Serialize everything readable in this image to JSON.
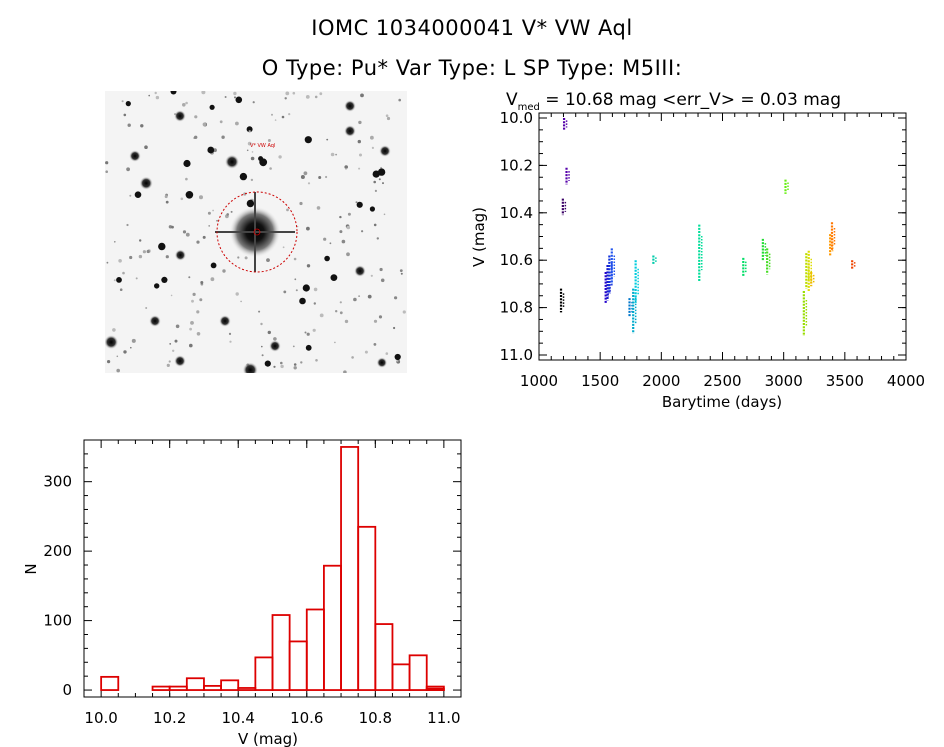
{
  "header": {
    "title_line1": "IOMC 1034000041    V* VW Aql",
    "title_line2": "O Type: Pu*  Var Type: L   SP Type: M5III:"
  },
  "finder_chart": {
    "target_label": "V* VW Aql",
    "circle_color": "#cc0000",
    "label_color": "#cc0000"
  },
  "chart_data": [
    {
      "type": "scatter",
      "title_prefix": "V",
      "title_subscript": "med",
      "title_rest": " = 10.68 mag <err_V> = 0.03 mag",
      "xlabel": "Barytime (days)",
      "ylabel": "V (mag)",
      "xlim": [
        1000,
        4000
      ],
      "ylim": [
        11.0,
        10.0
      ],
      "y_inverted": true,
      "x_ticks": [
        1000,
        1500,
        2000,
        2500,
        3000,
        3500,
        4000
      ],
      "y_ticks": [
        "10.0",
        "10.2",
        "10.4",
        "10.6",
        "10.8",
        "11.0"
      ],
      "groups": [
        {
          "x": 1180,
          "y": [
            10.72,
            10.82
          ],
          "color": "#000000"
        },
        {
          "x": 1195,
          "y": [
            10.34,
            10.41
          ],
          "color": "#3a0066"
        },
        {
          "x": 1205,
          "y": [
            10.0,
            10.05
          ],
          "color": "#5500aa"
        },
        {
          "x": 1225,
          "y": [
            10.21,
            10.28
          ],
          "color": "#5500aa"
        },
        {
          "x": 1545,
          "y": [
            10.65,
            10.78
          ],
          "color": "#2200cc"
        },
        {
          "x": 1560,
          "y": [
            10.62,
            10.77
          ],
          "color": "#1a1acc"
        },
        {
          "x": 1575,
          "y": [
            10.58,
            10.74
          ],
          "color": "#1133dd"
        },
        {
          "x": 1595,
          "y": [
            10.55,
            10.7
          ],
          "color": "#2255ee"
        },
        {
          "x": 1740,
          "y": [
            10.76,
            10.84
          ],
          "color": "#0077cc"
        },
        {
          "x": 1770,
          "y": [
            10.72,
            10.91
          ],
          "color": "#00aacc"
        },
        {
          "x": 1790,
          "y": [
            10.6,
            10.78
          ],
          "color": "#00ccdd"
        },
        {
          "x": 1935,
          "y": [
            10.58,
            10.62
          ],
          "color": "#00ccaa"
        },
        {
          "x": 2310,
          "y": [
            10.45,
            10.69
          ],
          "color": "#00dd99"
        },
        {
          "x": 2670,
          "y": [
            10.59,
            10.67
          ],
          "color": "#00dd66"
        },
        {
          "x": 2830,
          "y": [
            10.51,
            10.6
          ],
          "color": "#22dd33"
        },
        {
          "x": 2865,
          "y": [
            10.55,
            10.66
          ],
          "color": "#44dd22"
        },
        {
          "x": 3015,
          "y": [
            10.26,
            10.32
          ],
          "color": "#66ee11"
        },
        {
          "x": 3165,
          "y": [
            10.73,
            10.92
          ],
          "color": "#99dd00"
        },
        {
          "x": 3185,
          "y": [
            10.57,
            10.72
          ],
          "color": "#bbdd00"
        },
        {
          "x": 3205,
          "y": [
            10.56,
            10.73
          ],
          "color": "#dddd00"
        },
        {
          "x": 3225,
          "y": [
            10.65,
            10.71
          ],
          "color": "#eebb00"
        },
        {
          "x": 3380,
          "y": [
            10.49,
            10.58
          ],
          "color": "#ff9900"
        },
        {
          "x": 3395,
          "y": [
            10.44,
            10.56
          ],
          "color": "#ff7700"
        },
        {
          "x": 3560,
          "y": [
            10.6,
            10.64
          ],
          "color": "#ee4400"
        }
      ]
    },
    {
      "type": "bar",
      "xlabel": "V (mag)",
      "ylabel": "N",
      "xlim": [
        9.95,
        11.05
      ],
      "ylim": [
        -10,
        360
      ],
      "x_ticks": [
        "10.0",
        "10.2",
        "10.4",
        "10.6",
        "10.8",
        "11.0"
      ],
      "y_ticks": [
        "0",
        "100",
        "200",
        "300"
      ],
      "bin_width": 0.05,
      "bin_starts": [
        10.0,
        10.05,
        10.1,
        10.15,
        10.2,
        10.25,
        10.3,
        10.35,
        10.4,
        10.45,
        10.5,
        10.55,
        10.6,
        10.65,
        10.7,
        10.75,
        10.8,
        10.85,
        10.9,
        10.95
      ],
      "values": [
        19,
        0,
        0,
        5,
        5,
        17,
        6,
        14,
        3,
        47,
        108,
        70,
        116,
        179,
        350,
        235,
        95,
        37,
        50,
        5
      ],
      "tail": {
        "start": 10.95,
        "end": 11.0,
        "value": 2
      },
      "color": "#dd0000"
    }
  ]
}
